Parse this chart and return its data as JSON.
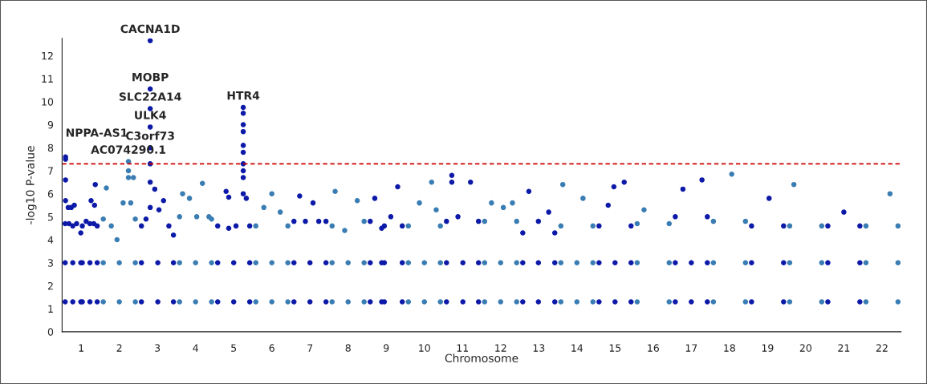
{
  "chart_data": {
    "type": "scatter",
    "xlabel": "Chromosome",
    "ylabel": "-log10 P-value",
    "xlim": [
      0.5,
      22.5
    ],
    "ylim": [
      0,
      12.75
    ],
    "xticks": [
      1,
      2,
      3,
      4,
      5,
      6,
      7,
      8,
      9,
      10,
      11,
      12,
      13,
      14,
      15,
      16,
      17,
      18,
      19,
      20,
      21,
      22
    ],
    "yticks": [
      0,
      1,
      2,
      3,
      4,
      5,
      6,
      7,
      8,
      9,
      10,
      11,
      12
    ],
    "grid": false,
    "legend": false,
    "marker": "circle",
    "series": [
      {
        "color": "#0d1aa8",
        "x": [
          0.58,
          0.58,
          0.58,
          0.68,
          0.78,
          0.88,
          0.99,
          0.99,
          0.99,
          0.78,
          0.78,
          0.59,
          0.59,
          0.59,
          0.59,
          0.66,
          0.74,
          0.82,
          1.03,
          1.03,
          1.03,
          1.13,
          1.23,
          1.33,
          1.42,
          1.42,
          1.42,
          1.23,
          1.23,
          1.37,
          1.26,
          1.35,
          2.58,
          2.58,
          2.58,
          2.7,
          2.81,
          2.81,
          2.81,
          2.81,
          2.81,
          2.81,
          2.81,
          2.81,
          2.93,
          3.04,
          3.16,
          3.3,
          3.42,
          3.42,
          3.42,
          3.01,
          3.01,
          4.58,
          4.58,
          4.58,
          4.8,
          4.87,
          5.06,
          5.25,
          5.25,
          5.25,
          5.25,
          5.25,
          5.25,
          5.25,
          5.25,
          5.25,
          5.25,
          5.33,
          5.42,
          5.42,
          5.42,
          5.0,
          5.0,
          4.87,
          6.58,
          6.58,
          6.58,
          6.73,
          6.88,
          7.08,
          7.23,
          7.42,
          7.42,
          7.42,
          7.0,
          7.0,
          8.58,
          8.58,
          8.58,
          8.7,
          8.88,
          8.88,
          8.88,
          8.95,
          8.95,
          8.95,
          9.12,
          9.3,
          9.42,
          9.42,
          9.42,
          10.58,
          10.58,
          10.58,
          10.72,
          10.72,
          10.88,
          11.21,
          11.42,
          11.42,
          11.42,
          11.01,
          11.01,
          12.58,
          12.58,
          12.58,
          12.74,
          12.99,
          13.26,
          13.42,
          13.42,
          13.42,
          12.99,
          12.99,
          14.58,
          14.58,
          14.58,
          14.82,
          14.97,
          15.24,
          15.42,
          15.42,
          15.42,
          15.0,
          15.0,
          16.58,
          16.58,
          16.58,
          16.78,
          17.28,
          17.42,
          17.42,
          17.42,
          17.0,
          17.0,
          18.58,
          18.58,
          18.58,
          19.04,
          19.42,
          19.42,
          19.42,
          20.58,
          20.58,
          20.58,
          21.0,
          21.42,
          21.42,
          21.42
        ],
        "values": [
          1.3,
          3,
          4.7,
          4.7,
          4.6,
          4.7,
          4.3,
          3,
          1.3,
          1.3,
          3,
          7.6,
          7.5,
          6.6,
          5.7,
          5.4,
          5.4,
          5.5,
          1.3,
          3,
          4.6,
          4.8,
          4.7,
          4.7,
          4.6,
          3,
          1.3,
          1.3,
          3,
          6.4,
          5.7,
          5.5,
          1.3,
          3,
          4.6,
          4.9,
          5.4,
          6.5,
          7.3,
          8.0,
          8.9,
          9.7,
          10.55,
          12.65,
          6.2,
          5.3,
          5.7,
          4.6,
          4.2,
          3,
          1.3,
          1.3,
          3,
          1.3,
          3,
          4.6,
          6.1,
          4.5,
          4.6,
          6.0,
          6.7,
          7.0,
          7.3,
          7.8,
          8.1,
          8.7,
          9.0,
          9.5,
          9.75,
          5.8,
          4.6,
          3,
          1.3,
          1.3,
          3,
          5.85,
          1.3,
          3,
          4.8,
          5.9,
          4.8,
          5.6,
          4.8,
          4.8,
          3,
          1.3,
          1.3,
          3,
          1.3,
          3,
          4.8,
          5.8,
          4.5,
          3,
          1.3,
          1.3,
          3,
          4.6,
          5.0,
          6.3,
          4.6,
          3,
          1.3,
          1.3,
          3,
          4.8,
          6.8,
          6.5,
          5.0,
          6.5,
          4.8,
          3,
          1.3,
          1.3,
          3,
          1.3,
          3,
          4.3,
          6.1,
          4.8,
          5.2,
          4.3,
          3,
          1.3,
          1.3,
          3,
          1.3,
          3,
          4.6,
          5.5,
          6.3,
          6.5,
          4.6,
          3,
          1.3,
          1.3,
          3,
          1.3,
          3,
          5.0,
          6.2,
          6.6,
          5.0,
          3,
          1.3,
          1.3,
          3,
          1.3,
          3,
          4.6,
          5.8,
          4.6,
          3,
          1.3,
          1.3,
          3,
          4.6,
          5.2,
          4.6,
          3,
          1.3
        ]
      },
      {
        "color": "#3a7db3",
        "x": [
          1.58,
          1.58,
          1.58,
          1.66,
          1.79,
          1.94,
          2.1,
          2.24,
          2.24,
          2.24,
          2.3,
          2.37,
          2.42,
          2.42,
          2.42,
          2.0,
          2.0,
          3.58,
          3.58,
          3.58,
          3.66,
          3.84,
          4.03,
          4.18,
          4.35,
          4.42,
          4.42,
          4.42,
          4.0,
          4.0,
          5.58,
          5.58,
          5.58,
          5.79,
          6.0,
          6.22,
          6.42,
          6.42,
          6.42,
          6.0,
          6.0,
          7.58,
          7.58,
          7.58,
          7.66,
          7.91,
          8.24,
          8.42,
          8.42,
          8.42,
          8.0,
          8.0,
          9.58,
          9.58,
          9.58,
          9.87,
          10.19,
          10.31,
          10.42,
          10.42,
          10.42,
          10.0,
          10.0,
          11.58,
          11.58,
          11.58,
          11.76,
          12.07,
          12.31,
          12.42,
          12.42,
          12.42,
          12.0,
          12.0,
          13.58,
          13.58,
          13.58,
          13.63,
          14.16,
          14.42,
          14.42,
          14.42,
          14.0,
          14.0,
          15.58,
          15.58,
          15.58,
          15.76,
          16.42,
          16.42,
          16.42,
          17.58,
          17.58,
          17.58,
          18.06,
          18.42,
          18.42,
          18.42,
          19.58,
          19.58,
          19.58,
          19.69,
          20.42,
          20.42,
          20.42,
          21.58,
          21.58,
          21.58,
          22.21,
          22.42,
          22.42,
          22.42
        ],
        "values": [
          1.3,
          3,
          4.9,
          6.25,
          4.6,
          4.0,
          5.6,
          7.4,
          7.0,
          6.7,
          5.6,
          6.7,
          4.9,
          3,
          1.3,
          1.3,
          3,
          1.3,
          3,
          5.0,
          6.0,
          5.8,
          5.0,
          6.45,
          5.0,
          4.9,
          3,
          1.3,
          1.3,
          3,
          1.3,
          3,
          4.6,
          5.4,
          6.0,
          5.2,
          4.6,
          3,
          1.3,
          1.3,
          3,
          1.3,
          3,
          4.6,
          6.1,
          4.4,
          5.7,
          4.8,
          3,
          1.3,
          1.3,
          3,
          1.3,
          3,
          4.6,
          5.6,
          6.5,
          5.3,
          4.6,
          3,
          1.3,
          1.3,
          3,
          1.3,
          3,
          4.8,
          5.6,
          5.4,
          5.6,
          4.8,
          3,
          1.3,
          1.3,
          3,
          1.3,
          3,
          4.6,
          6.4,
          5.8,
          4.6,
          3,
          1.3,
          1.3,
          3,
          1.3,
          3,
          4.7,
          5.3,
          4.7,
          3,
          1.3,
          1.3,
          3,
          4.8,
          6.85,
          4.8,
          3,
          1.3,
          1.3,
          3,
          4.6,
          6.4,
          4.6,
          3,
          1.3,
          1.3,
          3,
          4.6,
          6.0,
          4.6,
          3,
          1.3
        ]
      }
    ],
    "ref_lines": [
      {
        "axis": "y",
        "value": 7.3,
        "color": "#cc0000",
        "line_style": "dashed"
      }
    ],
    "annotations": [
      {
        "text": "NPPA-AS1",
        "x": 0.59,
        "y": 7.6
      },
      {
        "text": "CACNA1D",
        "x": 2.81,
        "y": 12.65
      },
      {
        "text": "MOBP",
        "x": 2.81,
        "y": 10.55
      },
      {
        "text": "SLC22A14",
        "x": 2.81,
        "y": 9.7
      },
      {
        "text": "ULK4",
        "x": 2.81,
        "y": 8.9
      },
      {
        "text": "C3orf73",
        "x": 2.81,
        "y": 8.0
      },
      {
        "text": "AC074290.1",
        "x": 2.24,
        "y": 7.4
      },
      {
        "text": "HTR4",
        "x": 5.25,
        "y": 9.75
      }
    ]
  }
}
